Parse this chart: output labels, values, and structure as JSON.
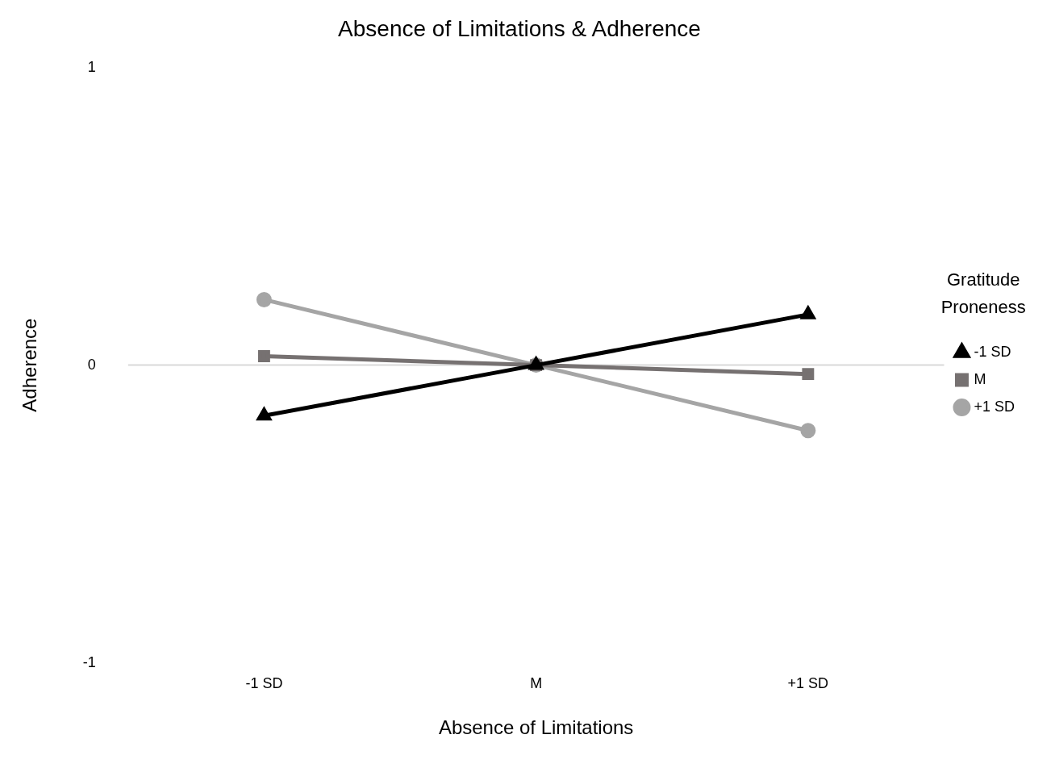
{
  "chart_data": {
    "type": "line",
    "title": "Absence of Limitations & Adherence",
    "xlabel": "Absence of Limitations",
    "ylabel": "Adherence",
    "legend_title": "Gratitude Proneness",
    "categories": [
      "-1 SD",
      "M",
      "+1 SD"
    ],
    "series": [
      {
        "name": "-1 SD",
        "color": "#000000",
        "marker": "triangle",
        "values": [
          -0.17,
          0,
          0.17
        ]
      },
      {
        "name": "M",
        "color": "#767171",
        "marker": "square",
        "values": [
          0.03,
          0,
          -0.03
        ]
      },
      {
        "name": "+1 SD",
        "color": "#a5a5a5",
        "marker": "circle",
        "values": [
          0.22,
          0,
          -0.22
        ]
      }
    ],
    "ylim": [
      -1,
      1
    ],
    "yticks": [
      -1,
      0,
      1
    ],
    "grid": false,
    "legend": "right",
    "ref_lines": [
      {
        "axis": "y",
        "value": 0,
        "color": "#d9d9d9"
      }
    ]
  }
}
